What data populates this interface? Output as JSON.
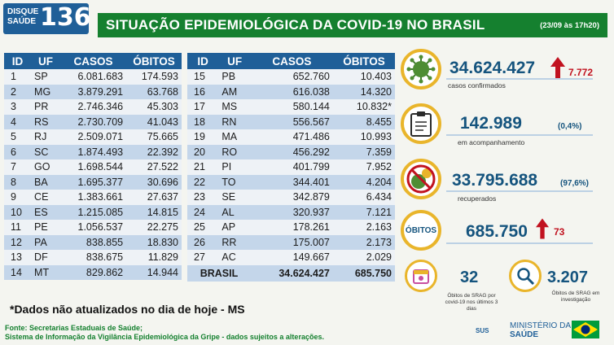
{
  "header": {
    "logo_line1": "DISQUE",
    "logo_line2": "SAÚDE",
    "logo_number": "136",
    "title": "SITUAÇÃO EPIDEMIOLÓGICA DA COVID-19 NO BRASIL",
    "date": "(23/09 às 17h20)"
  },
  "table": {
    "columns": [
      "ID",
      "UF",
      "CASOS",
      "ÓBITOS"
    ],
    "left_rows": [
      {
        "id": "1",
        "uf": "SP",
        "casos": "6.081.683",
        "obitos": "174.593"
      },
      {
        "id": "2",
        "uf": "MG",
        "casos": "3.879.291",
        "obitos": "63.768"
      },
      {
        "id": "3",
        "uf": "PR",
        "casos": "2.746.346",
        "obitos": "45.303"
      },
      {
        "id": "4",
        "uf": "RS",
        "casos": "2.730.709",
        "obitos": "41.043"
      },
      {
        "id": "5",
        "uf": "RJ",
        "casos": "2.509.071",
        "obitos": "75.665"
      },
      {
        "id": "6",
        "uf": "SC",
        "casos": "1.874.493",
        "obitos": "22.392"
      },
      {
        "id": "7",
        "uf": "GO",
        "casos": "1.698.544",
        "obitos": "27.522"
      },
      {
        "id": "8",
        "uf": "BA",
        "casos": "1.695.377",
        "obitos": "30.696"
      },
      {
        "id": "9",
        "uf": "CE",
        "casos": "1.383.661",
        "obitos": "27.637"
      },
      {
        "id": "10",
        "uf": "ES",
        "casos": "1.215.085",
        "obitos": "14.815"
      },
      {
        "id": "11",
        "uf": "PE",
        "casos": "1.056.537",
        "obitos": "22.275"
      },
      {
        "id": "12",
        "uf": "PA",
        "casos": "838.855",
        "obitos": "18.830"
      },
      {
        "id": "13",
        "uf": "DF",
        "casos": "838.675",
        "obitos": "11.829"
      },
      {
        "id": "14",
        "uf": "MT",
        "casos": "829.862",
        "obitos": "14.944"
      }
    ],
    "right_rows": [
      {
        "id": "15",
        "uf": "PB",
        "casos": "652.760",
        "obitos": "10.403"
      },
      {
        "id": "16",
        "uf": "AM",
        "casos": "616.038",
        "obitos": "14.320"
      },
      {
        "id": "17",
        "uf": "MS",
        "casos": "580.144",
        "obitos": "10.832*"
      },
      {
        "id": "18",
        "uf": "RN",
        "casos": "556.567",
        "obitos": "8.455"
      },
      {
        "id": "19",
        "uf": "MA",
        "casos": "471.486",
        "obitos": "10.993"
      },
      {
        "id": "20",
        "uf": "RO",
        "casos": "456.292",
        "obitos": "7.359"
      },
      {
        "id": "21",
        "uf": "PI",
        "casos": "401.799",
        "obitos": "7.952"
      },
      {
        "id": "22",
        "uf": "TO",
        "casos": "344.401",
        "obitos": "4.204"
      },
      {
        "id": "23",
        "uf": "SE",
        "casos": "342.879",
        "obitos": "6.434"
      },
      {
        "id": "24",
        "uf": "AL",
        "casos": "320.937",
        "obitos": "7.121"
      },
      {
        "id": "25",
        "uf": "AP",
        "casos": "178.261",
        "obitos": "2.163"
      },
      {
        "id": "26",
        "uf": "RR",
        "casos": "175.007",
        "obitos": "2.173"
      },
      {
        "id": "27",
        "uf": "AC",
        "casos": "149.667",
        "obitos": "2.029"
      }
    ],
    "total": {
      "label": "BRASIL",
      "casos": "34.624.427",
      "obitos": "685.750"
    }
  },
  "footnote": "*Dados não atualizados no dia de hoje - MS",
  "source_line1": "Fonte: Secretarias Estaduais de Saúde;",
  "source_line2": "Sistema de Informação da Vigilância Epidemiológica da Gripe - dados sujeitos a alterações.",
  "stats": {
    "confirmed": {
      "value": "34.624.427",
      "delta": "7.772",
      "label": "casos confirmados"
    },
    "monitoring": {
      "value": "142.989",
      "pct": "(0,4%)",
      "label": "em acompanhamento"
    },
    "recovered": {
      "value": "33.795.688",
      "pct": "(97,6%)",
      "label": "recuperados"
    },
    "deaths": {
      "badge": "ÓBITOS",
      "value": "685.750",
      "delta": "73"
    },
    "srag_deaths": {
      "value": "32",
      "label": "Óbitos de SRAG por covid-19 nos últimos 3 dias"
    },
    "srag_investigation": {
      "value": "3.207",
      "label": "Óbitos de SRAG em investigação"
    }
  },
  "brand": {
    "sus": "SUS",
    "ministry_line1": "MINISTÉRIO DA",
    "ministry_line2": "SAÚDE"
  },
  "colors": {
    "title_green": "#15802f",
    "header_blue": "#1f5f98",
    "row_blue": "#c4d6ea",
    "stat_blue": "#15547e",
    "accent_yellow": "#e9b52b",
    "alert_red": "#c1121f"
  },
  "icons": {
    "confirmed": "virus-icon",
    "monitoring": "clipboard-icon",
    "recovered": "no-virus-icon",
    "deaths": "obitos-badge",
    "srag_deaths": "calendar-icon",
    "srag_investigation": "magnifier-icon",
    "trend": "arrow-up-icon"
  }
}
